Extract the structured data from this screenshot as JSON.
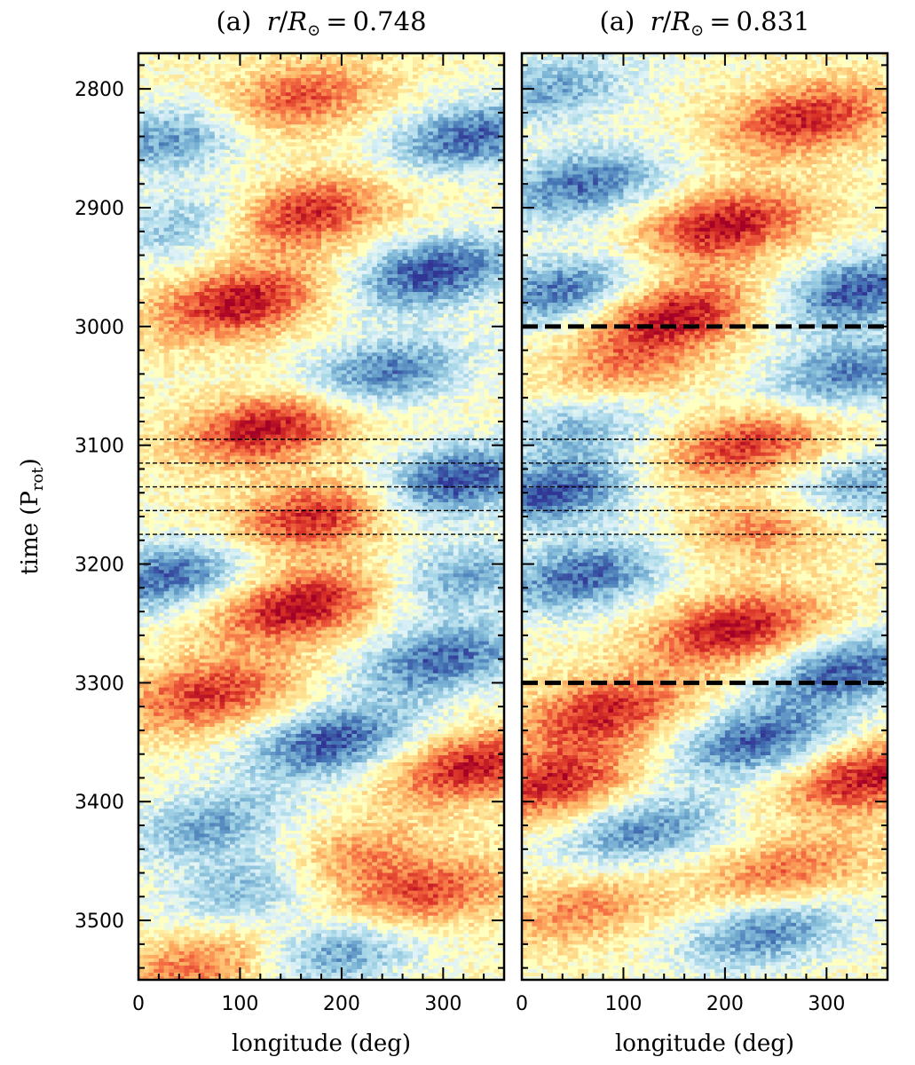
{
  "chart_data": {
    "type": "heatmap",
    "ylabel": "time (P",
    "ylabel_subscript": "rot",
    "ylabel_close": ")",
    "yticks": [
      2800,
      2900,
      3000,
      3100,
      3200,
      3300,
      3400,
      3500
    ],
    "yrange": [
      2770,
      3550
    ],
    "y_inverted": true,
    "colormap": "RdYlBu_r",
    "panels": [
      {
        "title_prefix": "(a)",
        "title_value": "0.748",
        "xlabel": "longitude (deg)",
        "xticks": [
          0,
          100,
          200,
          300
        ],
        "xrange": [
          0,
          360
        ],
        "thin_dashed_lines": [
          3095,
          3115,
          3135,
          3155,
          3175
        ],
        "thick_dashed_lines": [],
        "patches": [
          {
            "lon": 150,
            "t": 2810,
            "sign": 1,
            "amp": 0.75
          },
          {
            "lon": 160,
            "t": 2905,
            "sign": 1,
            "amp": 0.9
          },
          {
            "lon": 100,
            "t": 2980,
            "sign": 1,
            "amp": 0.95
          },
          {
            "lon": 130,
            "t": 3085,
            "sign": 1,
            "amp": 0.95
          },
          {
            "lon": 175,
            "t": 3160,
            "sign": 1,
            "amp": 0.9
          },
          {
            "lon": 160,
            "t": 3235,
            "sign": 1,
            "amp": 1.0
          },
          {
            "lon": 70,
            "t": 3310,
            "sign": 1,
            "amp": 0.8
          },
          {
            "lon": 330,
            "t": 3370,
            "sign": 1,
            "amp": 0.9
          },
          {
            "lon": 280,
            "t": 3480,
            "sign": 1,
            "amp": 0.75
          },
          {
            "lon": 200,
            "t": 3450,
            "sign": 1,
            "amp": 0.6
          },
          {
            "lon": 60,
            "t": 3540,
            "sign": 1,
            "amp": 0.6
          },
          {
            "lon": 40,
            "t": 2840,
            "sign": -1,
            "amp": 0.7
          },
          {
            "lon": 330,
            "t": 2840,
            "sign": -1,
            "amp": 0.85
          },
          {
            "lon": 50,
            "t": 2915,
            "sign": -1,
            "amp": 0.55
          },
          {
            "lon": 290,
            "t": 2955,
            "sign": -1,
            "amp": 0.95
          },
          {
            "lon": 240,
            "t": 3040,
            "sign": -1,
            "amp": 0.8
          },
          {
            "lon": 310,
            "t": 3130,
            "sign": -1,
            "amp": 1.0
          },
          {
            "lon": 30,
            "t": 3210,
            "sign": -1,
            "amp": 0.85
          },
          {
            "lon": 320,
            "t": 3210,
            "sign": -1,
            "amp": 0.6
          },
          {
            "lon": 300,
            "t": 3280,
            "sign": -1,
            "amp": 0.85
          },
          {
            "lon": 190,
            "t": 3350,
            "sign": -1,
            "amp": 0.9
          },
          {
            "lon": 70,
            "t": 3420,
            "sign": -1,
            "amp": 0.6
          },
          {
            "lon": 120,
            "t": 3470,
            "sign": -1,
            "amp": 0.65
          },
          {
            "lon": 200,
            "t": 3525,
            "sign": -1,
            "amp": 0.7
          }
        ]
      },
      {
        "title_prefix": "(a)",
        "title_value": "0.831",
        "xlabel": "longitude (deg)",
        "xticks": [
          0,
          100,
          200,
          300
        ],
        "xrange": [
          0,
          360
        ],
        "thin_dashed_lines": [
          3095,
          3115,
          3135,
          3155,
          3175
        ],
        "thick_dashed_lines": [
          3000,
          3300
        ],
        "patches": [
          {
            "lon": 280,
            "t": 2825,
            "sign": 1,
            "amp": 0.85
          },
          {
            "lon": 200,
            "t": 2915,
            "sign": 1,
            "amp": 0.95
          },
          {
            "lon": 150,
            "t": 2990,
            "sign": 1,
            "amp": 0.95
          },
          {
            "lon": 100,
            "t": 3040,
            "sign": 1,
            "amp": 0.5
          },
          {
            "lon": 220,
            "t": 3100,
            "sign": 1,
            "amp": 0.8
          },
          {
            "lon": 250,
            "t": 3165,
            "sign": 1,
            "amp": 0.7
          },
          {
            "lon": 210,
            "t": 3255,
            "sign": 1,
            "amp": 0.95
          },
          {
            "lon": 80,
            "t": 3325,
            "sign": 1,
            "amp": 0.85
          },
          {
            "lon": 30,
            "t": 3385,
            "sign": 1,
            "amp": 0.85
          },
          {
            "lon": 340,
            "t": 3380,
            "sign": 1,
            "amp": 0.9
          },
          {
            "lon": 260,
            "t": 3460,
            "sign": 1,
            "amp": 0.6
          },
          {
            "lon": 60,
            "t": 3490,
            "sign": 1,
            "amp": 0.5
          },
          {
            "lon": 30,
            "t": 2800,
            "sign": -1,
            "amp": 0.6
          },
          {
            "lon": 60,
            "t": 2880,
            "sign": -1,
            "amp": 0.8
          },
          {
            "lon": 40,
            "t": 2970,
            "sign": -1,
            "amp": 0.8
          },
          {
            "lon": 330,
            "t": 2970,
            "sign": -1,
            "amp": 0.9
          },
          {
            "lon": 320,
            "t": 3040,
            "sign": -1,
            "amp": 0.75
          },
          {
            "lon": 60,
            "t": 3080,
            "sign": -1,
            "amp": 0.55
          },
          {
            "lon": 30,
            "t": 3140,
            "sign": -1,
            "amp": 0.9
          },
          {
            "lon": 320,
            "t": 3140,
            "sign": -1,
            "amp": 0.75
          },
          {
            "lon": 60,
            "t": 3210,
            "sign": -1,
            "amp": 0.85
          },
          {
            "lon": 320,
            "t": 3290,
            "sign": -1,
            "amp": 0.85
          },
          {
            "lon": 230,
            "t": 3350,
            "sign": -1,
            "amp": 0.85
          },
          {
            "lon": 120,
            "t": 3425,
            "sign": -1,
            "amp": 0.7
          },
          {
            "lon": 240,
            "t": 3510,
            "sign": -1,
            "amp": 0.75
          }
        ]
      }
    ]
  }
}
